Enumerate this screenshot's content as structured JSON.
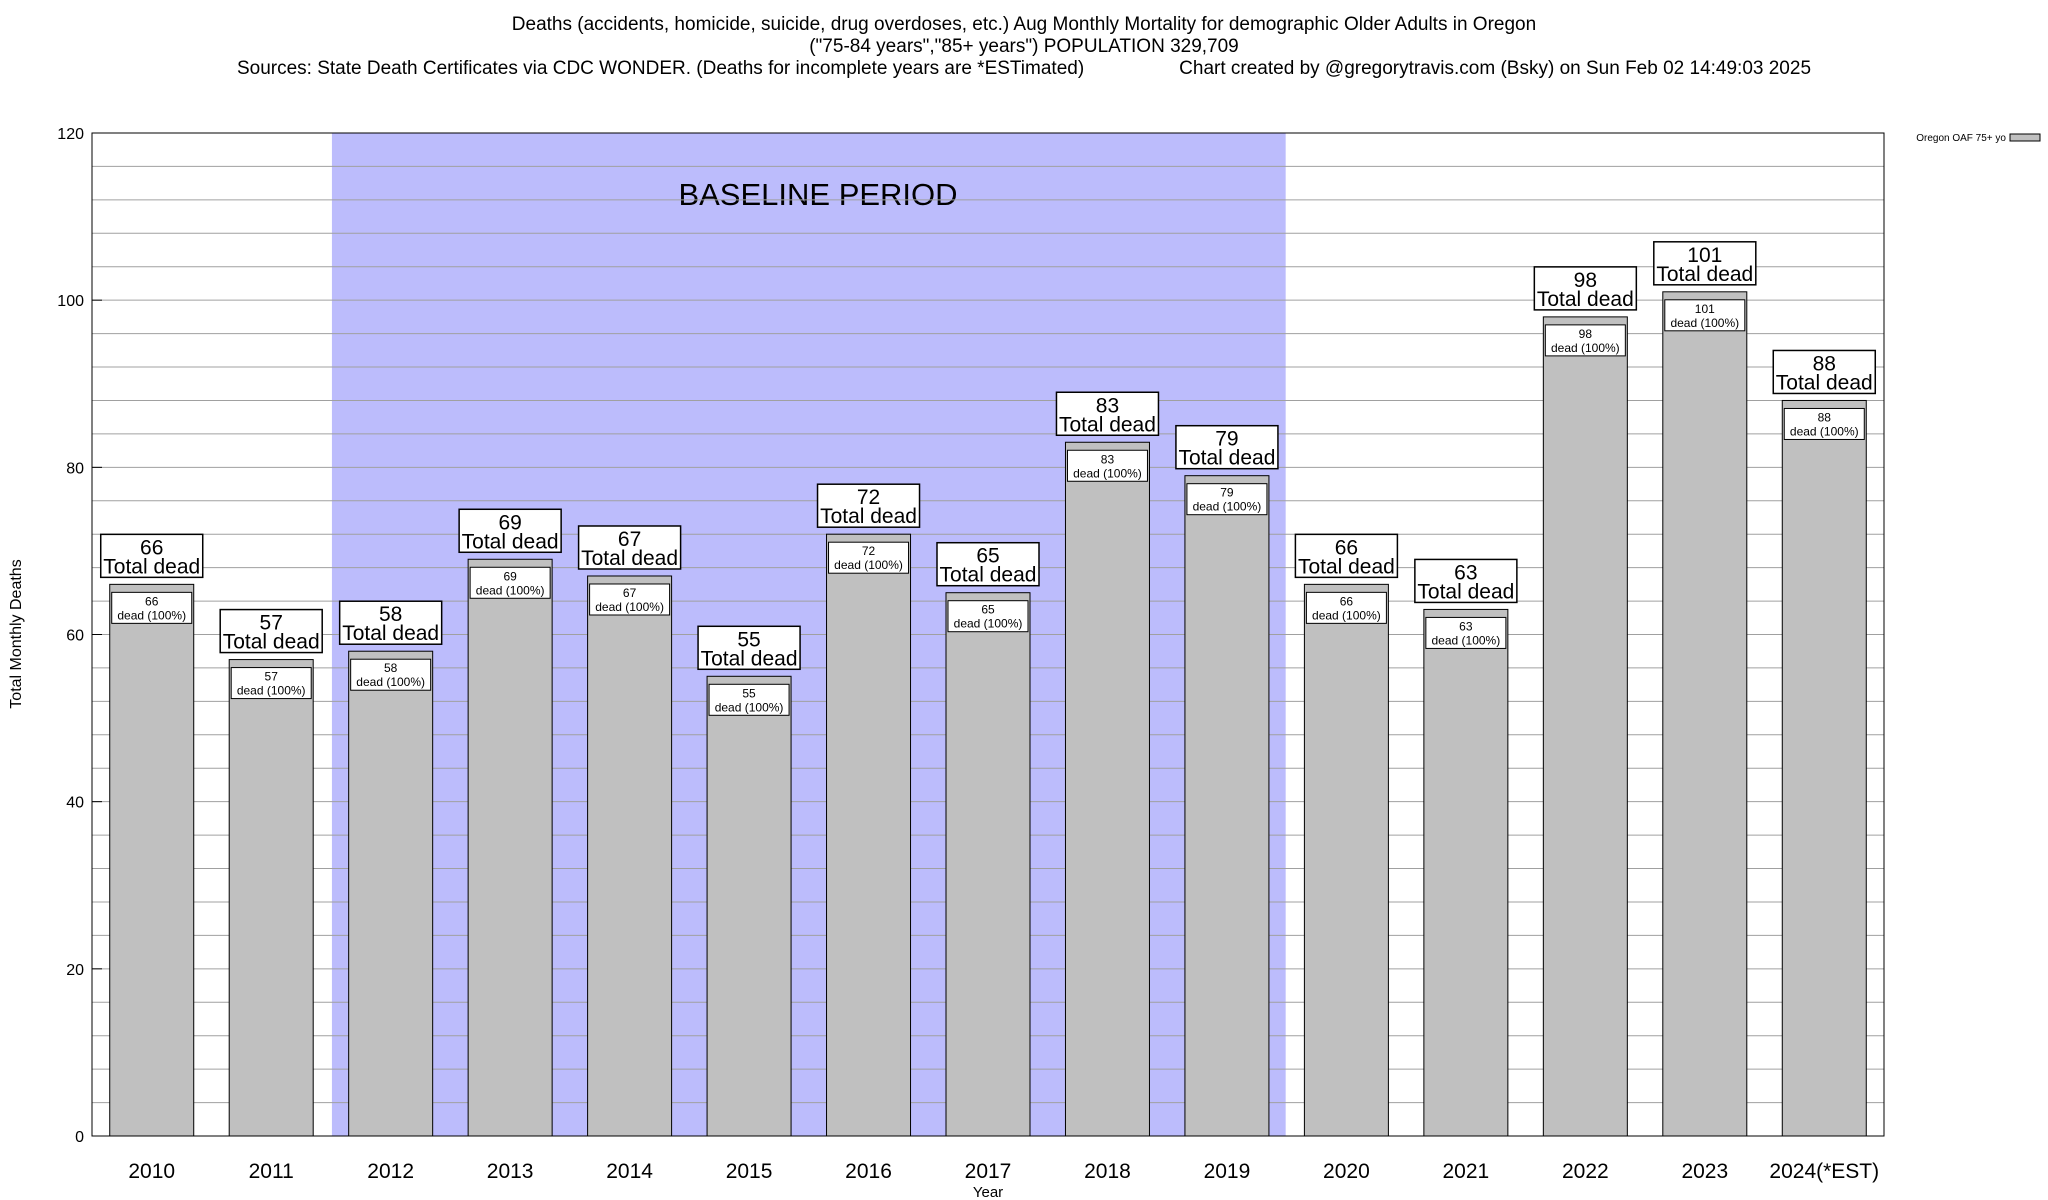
{
  "header": {
    "title_line1": "Deaths (accidents, homicide, suicide, drug overdoses, etc.) Aug Monthly Mortality for demographic Older Adults in Oregon",
    "title_line2": "(\"75-84 years\",\"85+ years\") POPULATION 329,709",
    "sources": "Sources: State Death Certificates via CDC WONDER. (Deaths for incomplete years are *ESTimated)",
    "credit": "Chart created by @gregorytravis.com (Bsky) on Sun Feb 02 14:49:03 2025"
  },
  "chart_data": {
    "type": "bar",
    "title": "Deaths (accidents, homicide, suicide, drug overdoses, etc.) Aug Monthly Mortality for demographic Older Adults in Oregon",
    "xlabel": "Year",
    "ylabel": "Total Monthly Deaths",
    "ylim": [
      0,
      120
    ],
    "yticks": [
      0,
      20,
      40,
      60,
      80,
      100,
      120
    ],
    "minor_grid_step": 4,
    "grid": true,
    "legend": {
      "position": "top-right",
      "label": "Oregon OAF 75+ yo"
    },
    "categories": [
      "2010",
      "2011",
      "2012",
      "2013",
      "2014",
      "2015",
      "2016",
      "2017",
      "2018",
      "2019",
      "2020",
      "2021",
      "2022",
      "2023",
      "2024(*EST)"
    ],
    "series": [
      {
        "name": "Oregon OAF 75+ yo",
        "values": [
          66,
          57,
          58,
          69,
          67,
          55,
          72,
          65,
          83,
          79,
          66,
          63,
          98,
          101,
          88
        ]
      }
    ],
    "top_label_suffix": "Total dead",
    "inner_label_suffix": "dead (100%)",
    "baseline": {
      "label": "BASELINE PERIOD",
      "from": "2012",
      "to": "2019"
    },
    "colors": {
      "bar": "#c0c0c0",
      "baseline": "#bcbcfc",
      "grid": "#a0a0a0"
    }
  }
}
